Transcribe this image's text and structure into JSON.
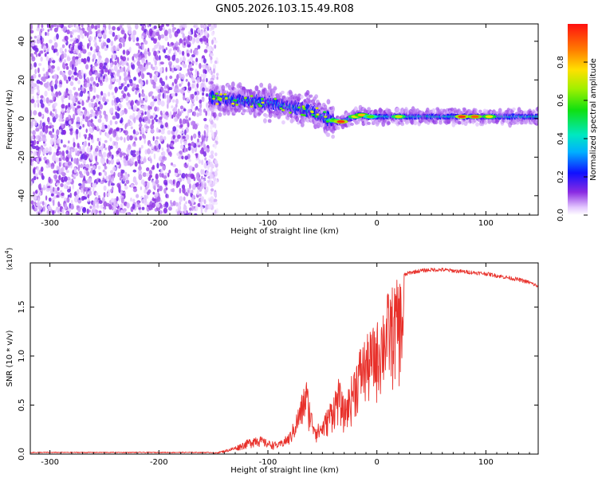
{
  "title": "GN05.2026.103.15.49.R08",
  "chart_data": [
    {
      "type": "heatmap",
      "title": "GN05.2026.103.15.49.R08",
      "xlabel": "Height of straight line (km)",
      "ylabel": "Frequency (Hz)",
      "xlim": [
        -318,
        148
      ],
      "ylim": [
        -50,
        49
      ],
      "xticks": [
        -300,
        -200,
        -100,
        0,
        100
      ],
      "yticks": [
        -40,
        -20,
        0,
        20,
        40
      ],
      "noise_region_x": [
        -318,
        -155
      ],
      "ridge": {
        "x": [
          -153,
          -140,
          -120,
          -100,
          -80,
          -60,
          -50,
          -40,
          -35,
          -30,
          -25,
          -20,
          -15,
          -10,
          0,
          10,
          30,
          60,
          80,
          100,
          120,
          148
        ],
        "freq": [
          11,
          10,
          9,
          8,
          6,
          4,
          1,
          -1,
          -2,
          -1,
          0,
          1,
          2,
          1,
          1,
          1,
          1,
          1,
          1,
          1,
          1,
          1
        ]
      },
      "colorbar": {
        "label": "Normalized spectral amplitude",
        "range": [
          0,
          1
        ],
        "ticks": [
          0.0,
          0.2,
          0.4,
          0.6,
          0.8
        ]
      }
    },
    {
      "type": "line",
      "xlabel": "Height of straight line (km)",
      "ylabel": "SNR (10 * v/v)",
      "multiplier_label": "(x10",
      "multiplier_exp": "4",
      "xlim": [
        -318,
        148
      ],
      "ylim": [
        0,
        1.95
      ],
      "xticks": [
        -300,
        -200,
        -100,
        0,
        100
      ],
      "yticks": [
        0.0,
        0.5,
        1.0,
        1.5
      ],
      "color": "#e8302a",
      "envelope": {
        "x": [
          -318,
          -150,
          -140,
          -130,
          -120,
          -110,
          -100,
          -90,
          -80,
          -75,
          -70,
          -65,
          -60,
          -55,
          -50,
          -45,
          -40,
          -35,
          -30,
          -25,
          -20,
          -15,
          -10,
          -5,
          0,
          5,
          10,
          20,
          30,
          40,
          50,
          60,
          70,
          80,
          90,
          100,
          110,
          120,
          130,
          140,
          148
        ],
        "y": [
          0.01,
          0.01,
          0.04,
          0.08,
          0.14,
          0.2,
          0.14,
          0.12,
          0.22,
          0.38,
          0.56,
          0.8,
          0.45,
          0.3,
          0.35,
          0.48,
          0.62,
          0.78,
          0.55,
          0.72,
          0.95,
          1.12,
          1.2,
          1.28,
          1.35,
          1.52,
          1.66,
          1.8,
          1.85,
          1.87,
          1.88,
          1.88,
          1.87,
          1.86,
          1.85,
          1.84,
          1.82,
          1.8,
          1.78,
          1.75,
          1.71
        ]
      }
    }
  ]
}
